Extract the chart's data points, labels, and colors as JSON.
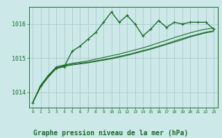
{
  "background_color": "#cce8e8",
  "grid_color": "#aacccc",
  "line_color": "#1a6b2a",
  "xlabel": "Graphe pression niveau de la mer (hPa)",
  "xlabel_fontsize": 7,
  "ylabel_ticks": [
    1014,
    1015,
    1016
  ],
  "xlim": [
    -0.5,
    23.5
  ],
  "ylim": [
    1013.55,
    1016.5
  ],
  "series": {
    "line1": {
      "x": [
        0,
        1,
        2,
        3,
        4,
        5,
        6,
        7,
        8,
        9,
        10,
        11,
        12,
        13,
        14,
        15,
        16,
        17,
        18,
        19,
        20,
        21,
        22,
        23
      ],
      "y": [
        1013.7,
        1014.2,
        1014.5,
        1014.7,
        1014.75,
        1015.2,
        1015.35,
        1015.55,
        1015.75,
        1016.05,
        1016.35,
        1016.05,
        1016.25,
        1016.0,
        1015.65,
        1015.85,
        1016.1,
        1015.9,
        1016.05,
        1016.0,
        1016.05,
        1016.05,
        1016.05,
        1015.85
      ],
      "marker": "+",
      "linewidth": 1.0
    },
    "line2": {
      "x": [
        0,
        1,
        2,
        3,
        4,
        5,
        6,
        7,
        8,
        9,
        10,
        11,
        12,
        13,
        14,
        15,
        16,
        17,
        18,
        19,
        20,
        21,
        22,
        23
      ],
      "y": [
        1013.7,
        1014.2,
        1014.5,
        1014.75,
        1014.8,
        1014.85,
        1014.88,
        1014.92,
        1014.97,
        1015.02,
        1015.07,
        1015.12,
        1015.18,
        1015.24,
        1015.3,
        1015.37,
        1015.45,
        1015.52,
        1015.6,
        1015.67,
        1015.74,
        1015.8,
        1015.85,
        1015.88
      ],
      "marker": null,
      "linewidth": 0.8
    },
    "line3": {
      "x": [
        0,
        1,
        2,
        3,
        4,
        5,
        6,
        7,
        8,
        9,
        10,
        11,
        12,
        13,
        14,
        15,
        16,
        17,
        18,
        19,
        20,
        21,
        22,
        23
      ],
      "y": [
        1013.7,
        1014.18,
        1014.48,
        1014.72,
        1014.78,
        1014.82,
        1014.85,
        1014.88,
        1014.92,
        1014.96,
        1015.0,
        1015.05,
        1015.1,
        1015.16,
        1015.22,
        1015.28,
        1015.35,
        1015.42,
        1015.5,
        1015.57,
        1015.64,
        1015.7,
        1015.76,
        1015.8
      ],
      "marker": null,
      "linewidth": 0.8
    },
    "line4": {
      "x": [
        0,
        1,
        2,
        3,
        4,
        5,
        6,
        7,
        8,
        9,
        10,
        11,
        12,
        13,
        14,
        15,
        16,
        17,
        18,
        19,
        20,
        21,
        22,
        23
      ],
      "y": [
        1013.7,
        1014.15,
        1014.45,
        1014.7,
        1014.76,
        1014.8,
        1014.83,
        1014.86,
        1014.9,
        1014.94,
        1014.98,
        1015.03,
        1015.08,
        1015.14,
        1015.2,
        1015.26,
        1015.33,
        1015.4,
        1015.47,
        1015.54,
        1015.62,
        1015.68,
        1015.74,
        1015.78
      ],
      "marker": null,
      "linewidth": 0.8
    }
  }
}
